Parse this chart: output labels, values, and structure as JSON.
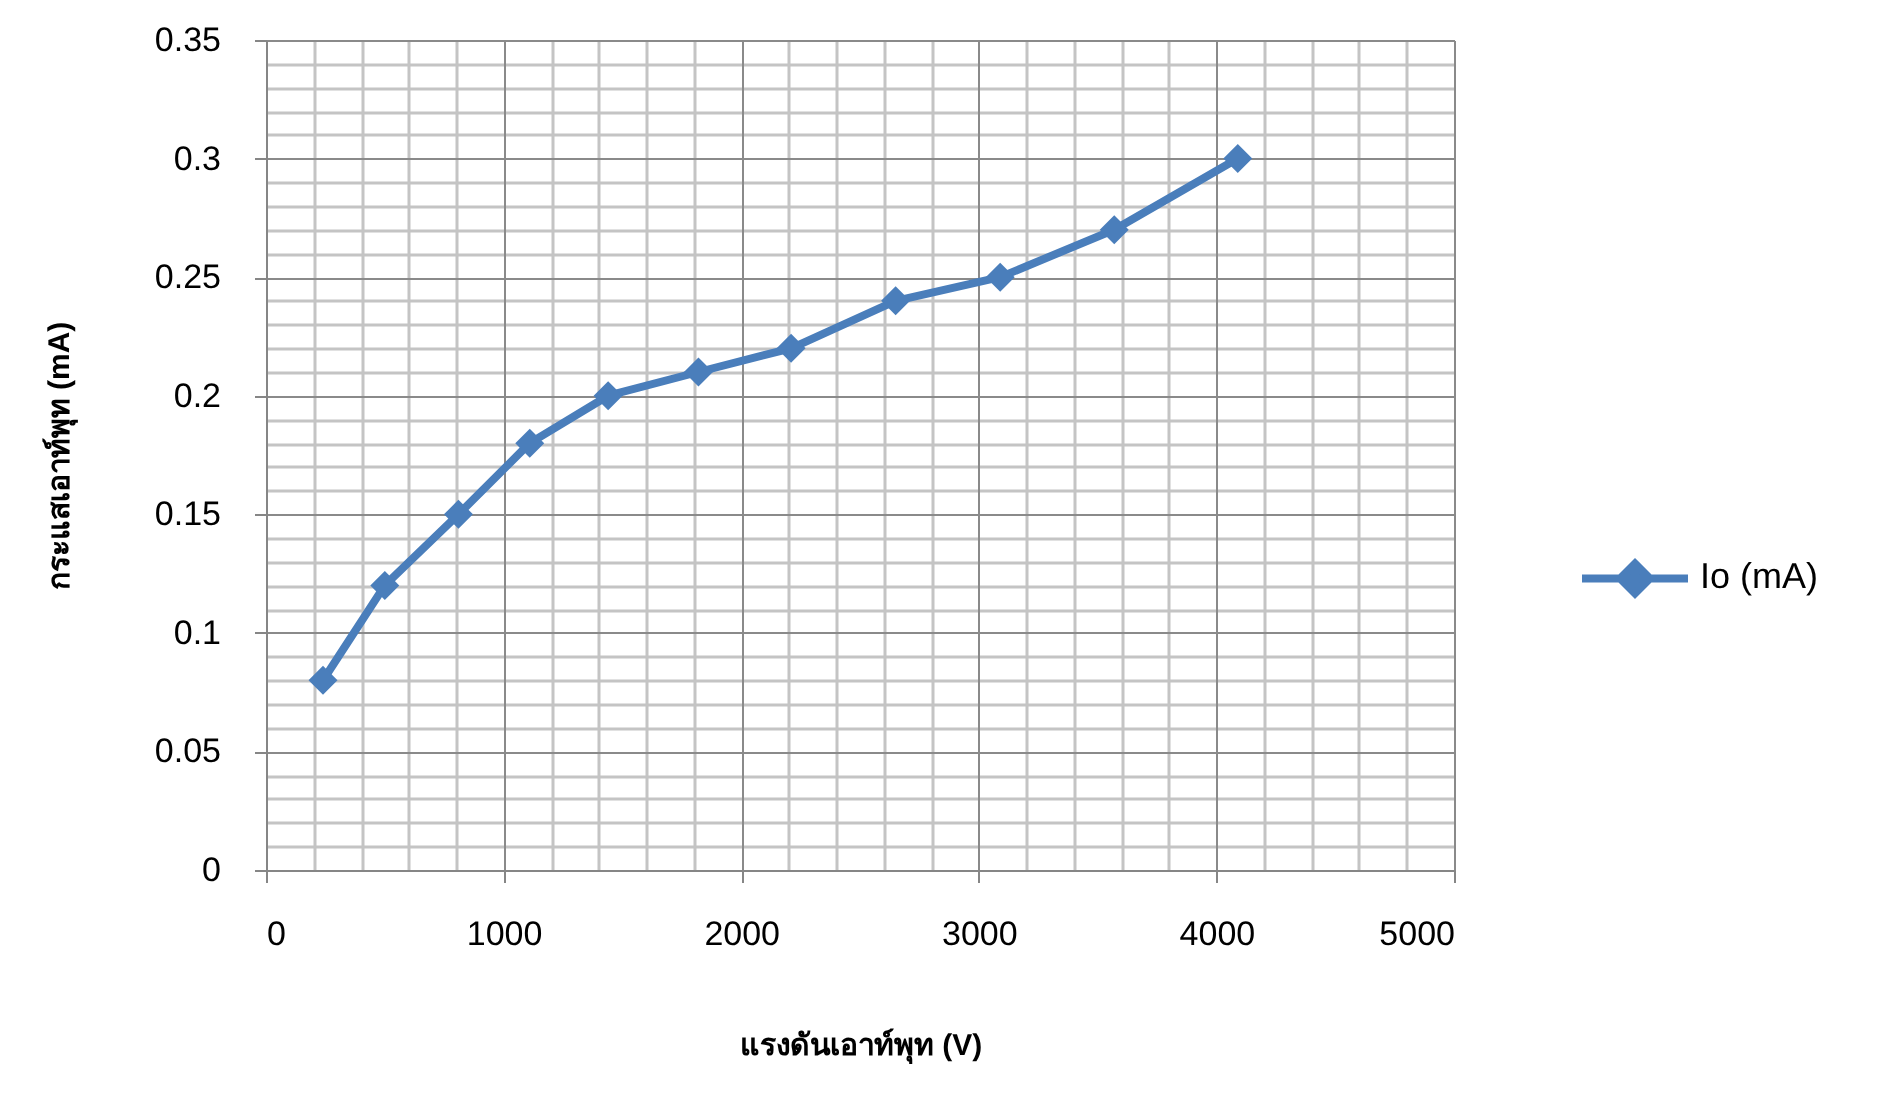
{
  "chart_data": {
    "type": "line",
    "xlabel": "แรงดันเอาท์พุท (V)",
    "ylabel": "กระแสเอาท์พุท (mA)",
    "x": [
      240,
      500,
      810,
      1110,
      1440,
      1820,
      2210,
      2650,
      3090,
      3570,
      4090
    ],
    "series": [
      {
        "name": "Io (mA)",
        "color": "#4a7ebb",
        "values": [
          0.08,
          0.12,
          0.15,
          0.18,
          0.2,
          0.21,
          0.22,
          0.24,
          0.25,
          0.27,
          0.3
        ]
      }
    ],
    "xlim": [
      0,
      5000
    ],
    "xticks": [
      0,
      1000,
      2000,
      3000,
      4000,
      5000
    ],
    "ylim": [
      0,
      0.35
    ],
    "yticks": [
      0,
      0.05,
      0.1,
      0.15,
      0.2,
      0.25,
      0.3,
      0.35
    ],
    "grid": true,
    "legend": "right",
    "marker": "diamond",
    "line_style": "solid"
  }
}
